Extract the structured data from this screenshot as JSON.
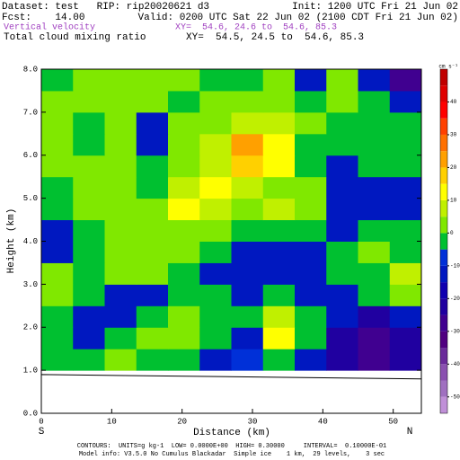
{
  "chart_data": {
    "type": "contour",
    "header": {
      "dataset": "Dataset: test   RIP: rip20020621 d3",
      "init": "Init: 1200 UTC Fri 21 Jun 02",
      "fcst": "Fcst:    14.00",
      "valid": "Valid: 0200 UTC Sat 22 Jun 02 (2100 CDT Fri 21 Jun 02)",
      "field1": "Vertical velocity",
      "xy1": "XY=  54.6, 24.6 to  54.6, 85.3",
      "field2": "Total cloud mixing ratio",
      "xy2": "XY=  54.5, 24.5 to  54.6, 85.3"
    },
    "x_label": "Distance (km)",
    "y_label": "Height (km)",
    "x_start_label": "S",
    "x_end_label": "N",
    "xlim": [
      0,
      54
    ],
    "ylim": [
      0,
      8
    ],
    "xticks": [
      0,
      10,
      20,
      30,
      40,
      50
    ],
    "yticks": [
      {
        "value": 0,
        "label": "0.0"
      },
      {
        "value": 1,
        "label": "1.0"
      },
      {
        "value": 2,
        "label": "2.0"
      },
      {
        "value": 3,
        "label": "3.0"
      },
      {
        "value": 4,
        "label": "4.0"
      },
      {
        "value": 5,
        "label": "5.0"
      },
      {
        "value": 6,
        "label": "6.0"
      },
      {
        "value": 7,
        "label": "7.0"
      },
      {
        "value": 8,
        "label": "8.0"
      }
    ],
    "field": {
      "x": [
        2.25,
        6.75,
        11.25,
        15.75,
        20.25,
        24.75,
        29.25,
        33.75,
        38.25,
        42.75,
        47.25,
        51.75
      ],
      "y": [
        1.25,
        1.75,
        2.25,
        2.75,
        3.25,
        3.75,
        4.25,
        4.75,
        5.25,
        5.75,
        6.25,
        6.75,
        7.25,
        7.75
      ],
      "values": [
        [
          -3,
          -3,
          2,
          -3,
          -3,
          -12,
          -8,
          -3,
          -15,
          -22,
          -30,
          -25
        ],
        [
          -3,
          -12,
          -3,
          2,
          2,
          -3,
          -12,
          10,
          -3,
          -25,
          -30,
          -25
        ],
        [
          -3,
          -12,
          -12,
          -3,
          2,
          -3,
          -3,
          5,
          -3,
          -15,
          -22,
          -15
        ],
        [
          2,
          -3,
          -12,
          -12,
          -3,
          -3,
          -12,
          -3,
          -12,
          -12,
          -3,
          2
        ],
        [
          2,
          -3,
          2,
          2,
          -3,
          -12,
          -15,
          -12,
          -15,
          -3,
          -3,
          5
        ],
        [
          -12,
          -3,
          2,
          2,
          2,
          -3,
          -12,
          -12,
          -12,
          -3,
          2,
          -3
        ],
        [
          -12,
          -3,
          2,
          2,
          2,
          2,
          -3,
          -3,
          -3,
          -12,
          -3,
          -3
        ],
        [
          -3,
          2,
          2,
          2,
          12,
          5,
          2,
          5,
          2,
          -12,
          -12,
          -12
        ],
        [
          -3,
          2,
          2,
          -3,
          5,
          12,
          5,
          2,
          2,
          -12,
          -12,
          -12
        ],
        [
          2,
          2,
          2,
          -3,
          2,
          5,
          17,
          12,
          -3,
          -12,
          -3,
          -3
        ],
        [
          2,
          -3,
          2,
          -12,
          2,
          5,
          22,
          12,
          -3,
          -3,
          -3,
          -3
        ],
        [
          2,
          -3,
          2,
          -12,
          2,
          2,
          5,
          5,
          2,
          -3,
          -3,
          -3
        ],
        [
          2,
          2,
          2,
          2,
          -3,
          2,
          2,
          2,
          -3,
          2,
          -3,
          -12
        ],
        [
          -3,
          2,
          2,
          2,
          2,
          -3,
          -3,
          2,
          -12,
          2,
          -12,
          -30
        ]
      ]
    },
    "terrain": {
      "x": [
        0,
        54
      ],
      "height": [
        0.9,
        0.8
      ]
    },
    "colorbar": {
      "unit": "cm s⁻¹",
      "levels": [
        -55,
        -50,
        -45,
        -40,
        -35,
        -30,
        -25,
        -20,
        -15,
        -10,
        -5,
        0,
        5,
        10,
        15,
        20,
        25,
        30,
        35,
        40,
        45,
        50
      ],
      "colors": [
        "#c090d8",
        "#a070c0",
        "#8a50b0",
        "#6a2a9a",
        "#500080",
        "#400090",
        "#2000a0",
        "#1000b0",
        "#0018c0",
        "#0030d8",
        "#00c030",
        "#80e800",
        "#c0f000",
        "#ffff00",
        "#ffd000",
        "#ffa000",
        "#ff7000",
        "#ff4000",
        "#ff0000",
        "#e00000",
        "#c00000"
      ],
      "ticks": [
        -50,
        -40,
        -30,
        -20,
        -10,
        0,
        10,
        20,
        30,
        40
      ]
    },
    "footer": {
      "contours": "CONTOURS:  UNITS=g kg-1  LOW= 0.0000E+00  HIGH= 0.30000     INTERVAL=  0.10000E-01",
      "model": "Model info: V3.5.0 No Cumulus Blackadar  Simple ice    1 km,  29 levels,    3 sec"
    }
  }
}
